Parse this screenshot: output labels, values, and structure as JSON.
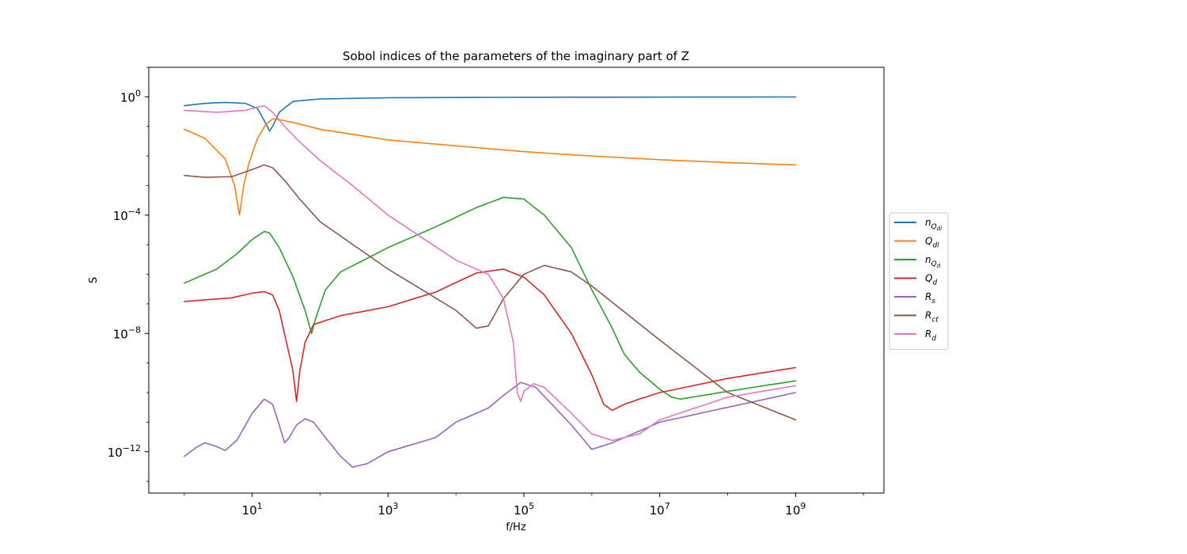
{
  "chart_data": {
    "type": "line",
    "title": "Sobol indices of the parameters of the imaginary part of Z",
    "xlabel": "f/Hz",
    "ylabel": "S",
    "xscale": "log",
    "yscale": "log",
    "xlim": [
      0.3,
      20000000000
    ],
    "ylim": [
      4e-14,
      10
    ],
    "xticks": [
      {
        "value": 10,
        "base": "10",
        "exp": "1"
      },
      {
        "value": 1000,
        "base": "10",
        "exp": "3"
      },
      {
        "value": 100000,
        "base": "10",
        "exp": "5"
      },
      {
        "value": 10000000,
        "base": "10",
        "exp": "7"
      },
      {
        "value": 1000000000,
        "base": "10",
        "exp": "9"
      }
    ],
    "yticks": [
      {
        "value": 1,
        "base": "10",
        "exp": "0"
      },
      {
        "value": 0.0001,
        "base": "10",
        "exp": "−4"
      },
      {
        "value": 1e-08,
        "base": "10",
        "exp": "−8"
      },
      {
        "value": 1e-12,
        "base": "10",
        "exp": "−12"
      }
    ],
    "grid": false,
    "legend_position": "right-outside",
    "series": [
      {
        "name": "n",
        "sub": "Q",
        "subsub": "dl",
        "color": "#1f77b4",
        "points": [
          [
            1,
            0.5
          ],
          [
            2,
            0.6
          ],
          [
            4,
            0.65
          ],
          [
            8,
            0.6
          ],
          [
            12,
            0.4
          ],
          [
            16,
            0.12
          ],
          [
            18,
            0.07
          ],
          [
            20,
            0.1
          ],
          [
            25,
            0.3
          ],
          [
            40,
            0.7
          ],
          [
            100,
            0.85
          ],
          [
            1000,
            0.93
          ],
          [
            100000,
            0.97
          ],
          [
            1000000000,
            0.99
          ]
        ]
      },
      {
        "name": "Q",
        "sub": "dl",
        "color": "#ff7f0e",
        "points": [
          [
            1,
            0.08
          ],
          [
            2,
            0.04
          ],
          [
            4,
            0.008
          ],
          [
            5.5,
            0.001
          ],
          [
            6.5,
            0.0001
          ],
          [
            7.5,
            0.001
          ],
          [
            9,
            0.006
          ],
          [
            12,
            0.04
          ],
          [
            16,
            0.12
          ],
          [
            20,
            0.18
          ],
          [
            25,
            0.17
          ],
          [
            50,
            0.12
          ],
          [
            100,
            0.08
          ],
          [
            1000,
            0.035
          ],
          [
            10000,
            0.022
          ],
          [
            100000,
            0.014
          ],
          [
            1000000,
            0.01
          ],
          [
            10000000,
            0.0075
          ],
          [
            100000000,
            0.006
          ],
          [
            1000000000,
            0.005
          ]
        ]
      },
      {
        "name": "n",
        "sub": "Q",
        "subsub": "d",
        "color": "#2ca02c",
        "points": [
          [
            1,
            5e-07
          ],
          [
            3,
            1.5e-06
          ],
          [
            6,
            5e-06
          ],
          [
            10,
            1.5e-05
          ],
          [
            15,
            2.8e-05
          ],
          [
            18,
            2.5e-05
          ],
          [
            25,
            8e-06
          ],
          [
            40,
            8e-07
          ],
          [
            60,
            6e-08
          ],
          [
            75,
            1e-08
          ],
          [
            85,
            3e-08
          ],
          [
            120,
            3e-07
          ],
          [
            200,
            1.2e-06
          ],
          [
            500,
            3.5e-06
          ],
          [
            1000,
            8e-06
          ],
          [
            5000,
            4e-05
          ],
          [
            20000,
            0.00018
          ],
          [
            50000,
            0.0004
          ],
          [
            100000,
            0.00035
          ],
          [
            200000,
            0.0001
          ],
          [
            500000,
            8e-06
          ],
          [
            1000000,
            3e-07
          ],
          [
            2000000,
            1.5e-08
          ],
          [
            3000000,
            2e-09
          ],
          [
            5000000,
            5e-10
          ],
          [
            10000000,
            1.3e-10
          ],
          [
            15000000,
            7e-11
          ],
          [
            20000000,
            6e-11
          ],
          [
            100000000,
            1.1e-10
          ],
          [
            1000000000,
            2.5e-10
          ]
        ]
      },
      {
        "name": "Q",
        "sub": "d",
        "color": "#d62728",
        "points": [
          [
            1,
            1.2e-07
          ],
          [
            5,
            1.6e-07
          ],
          [
            10,
            2.3e-07
          ],
          [
            15,
            2.6e-07
          ],
          [
            20,
            2e-07
          ],
          [
            25,
            6e-08
          ],
          [
            35,
            2e-09
          ],
          [
            40,
            5e-10
          ],
          [
            45,
            5e-11
          ],
          [
            50,
            5e-10
          ],
          [
            60,
            5e-09
          ],
          [
            80,
            2e-08
          ],
          [
            200,
            4e-08
          ],
          [
            1000,
            8e-08
          ],
          [
            5000,
            2.5e-07
          ],
          [
            20000,
            1.1e-06
          ],
          [
            50000,
            1.5e-06
          ],
          [
            100000,
            8e-07
          ],
          [
            200000,
            2e-07
          ],
          [
            500000,
            1e-08
          ],
          [
            1000000,
            4e-10
          ],
          [
            1500000,
            4e-11
          ],
          [
            2000000,
            2.5e-11
          ],
          [
            3000000,
            4e-11
          ],
          [
            5000000,
            6e-11
          ],
          [
            10000000,
            1e-10
          ],
          [
            100000000,
            3e-10
          ],
          [
            1000000000,
            7e-10
          ]
        ]
      },
      {
        "name": "R",
        "sub": "s",
        "color": "#9467bd",
        "points": [
          [
            1,
            7e-13
          ],
          [
            1.5,
            1.4e-12
          ],
          [
            2,
            2e-12
          ],
          [
            3,
            1.5e-12
          ],
          [
            4,
            1.1e-12
          ],
          [
            6,
            2.5e-12
          ],
          [
            10,
            2e-11
          ],
          [
            15,
            6e-11
          ],
          [
            20,
            4e-11
          ],
          [
            25,
            8e-12
          ],
          [
            30,
            2e-12
          ],
          [
            35,
            3e-12
          ],
          [
            45,
            8e-12
          ],
          [
            60,
            1.3e-11
          ],
          [
            80,
            1e-11
          ],
          [
            120,
            3e-12
          ],
          [
            200,
            7e-13
          ],
          [
            300,
            3e-13
          ],
          [
            500,
            4e-13
          ],
          [
            1000,
            1e-12
          ],
          [
            5000,
            3e-12
          ],
          [
            10000,
            1e-11
          ],
          [
            30000,
            3e-11
          ],
          [
            50000,
            8e-11
          ],
          [
            90000,
            2.2e-10
          ],
          [
            150000,
            1.5e-10
          ],
          [
            500000,
            8e-12
          ],
          [
            1000000,
            1.2e-12
          ],
          [
            2000000,
            2e-12
          ],
          [
            10000000,
            1e-11
          ],
          [
            1000000000,
            1e-10
          ]
        ]
      },
      {
        "name": "R",
        "sub": "ct",
        "color": "#8c564b",
        "points": [
          [
            1,
            0.0022
          ],
          [
            2,
            0.0019
          ],
          [
            5,
            0.002
          ],
          [
            10,
            0.0035
          ],
          [
            15,
            0.005
          ],
          [
            20,
            0.004
          ],
          [
            30,
            0.0015
          ],
          [
            50,
            0.00035
          ],
          [
            100,
            6e-05
          ],
          [
            1000,
            1.5e-06
          ],
          [
            10000,
            6e-08
          ],
          [
            20000,
            1.5e-08
          ],
          [
            30000,
            1.8e-08
          ],
          [
            50000,
            1.5e-07
          ],
          [
            100000,
            1e-06
          ],
          [
            200000,
            2e-06
          ],
          [
            500000,
            1.2e-06
          ],
          [
            1000000,
            4e-07
          ],
          [
            10000000,
            6e-09
          ],
          [
            100000000,
            1e-10
          ],
          [
            1000000000,
            1.2e-11
          ]
        ]
      },
      {
        "name": "R",
        "sub": "d",
        "color": "#e377c2",
        "points": [
          [
            1,
            0.35
          ],
          [
            3,
            0.3
          ],
          [
            8,
            0.35
          ],
          [
            12,
            0.45
          ],
          [
            15,
            0.5
          ],
          [
            20,
            0.3
          ],
          [
            30,
            0.1
          ],
          [
            50,
            0.03
          ],
          [
            100,
            0.007
          ],
          [
            300,
            0.001
          ],
          [
            1000,
            0.0001
          ],
          [
            10000,
            3e-06
          ],
          [
            30000,
            1e-06
          ],
          [
            50000,
            1.5e-07
          ],
          [
            70000,
            5e-09
          ],
          [
            80000,
            1e-10
          ],
          [
            90000,
            5e-11
          ],
          [
            100000,
            1.1e-10
          ],
          [
            140000,
            2e-10
          ],
          [
            200000,
            1.5e-10
          ],
          [
            500000,
            2e-11
          ],
          [
            1000000,
            4e-12
          ],
          [
            2000000,
            2.4e-12
          ],
          [
            5000000,
            4e-12
          ],
          [
            10000000,
            1.2e-11
          ],
          [
            100000000,
            7e-11
          ],
          [
            1000000000,
            1.7e-10
          ]
        ]
      }
    ]
  }
}
